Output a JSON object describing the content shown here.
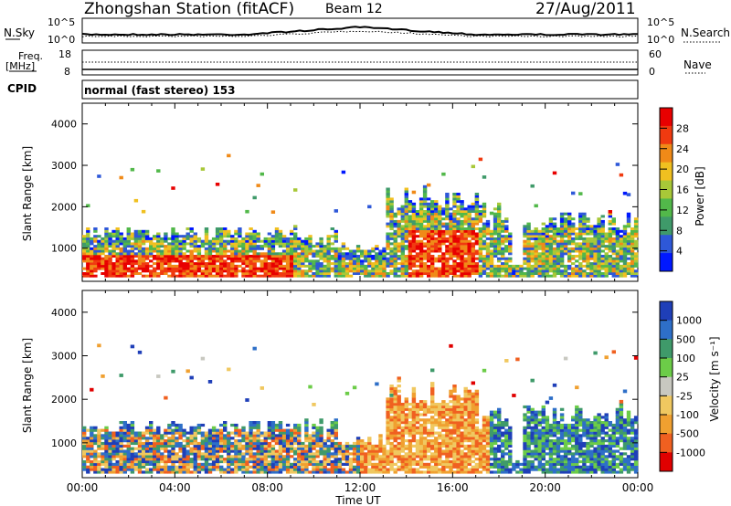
{
  "header": {
    "station": "Zhongshan Station (fitACF)",
    "beam": "Beam 12",
    "date": "27/Aug/2011"
  },
  "aux_panel": {
    "nsky_label": "N.Sky",
    "nsearch_label": "N.Search",
    "noise_top_tick": "10^5",
    "noise_bottom_tick": "10^0",
    "freq_label": "Freq.",
    "freq_unit": "[MHz]",
    "freq_ticks": [
      "18",
      "8"
    ],
    "nave_label": "Nave",
    "nave_ticks": [
      "60",
      "0"
    ],
    "cpid_label": "CPID",
    "cpid_value": "normal (fast stereo) 153"
  },
  "colors": {
    "power_scale": [
      "#0018ff",
      "#2e58d8",
      "#3f9a6a",
      "#52b84a",
      "#a8c838",
      "#f0c020",
      "#f08a18",
      "#f03a10",
      "#e80000"
    ],
    "velocity_scale": [
      "#1f3fb8",
      "#2e6fc8",
      "#3f9a6a",
      "#6ccc48",
      "#c8c8c0",
      "#f0c860",
      "#f0a030",
      "#f06020",
      "#e00000"
    ]
  },
  "chart_data": [
    {
      "type": "heatmap",
      "name": "power",
      "ylabel": "Slant Range [km]",
      "yticks": [
        "1000",
        "2000",
        "3000",
        "4000"
      ],
      "ylim": [
        200,
        4500
      ],
      "xticks": [
        "00:00",
        "04:00",
        "08:00",
        "12:00",
        "16:00",
        "20:00",
        "00:00"
      ],
      "colorbar_label": "Power [dB]",
      "colorbar_ticks": [
        "4",
        "8",
        "12",
        "16",
        "20",
        "24",
        "28"
      ]
    },
    {
      "type": "heatmap",
      "name": "velocity",
      "ylabel": "Slant Range [km]",
      "yticks": [
        "1000",
        "2000",
        "3000",
        "4000"
      ],
      "ylim": [
        200,
        4500
      ],
      "xticks": [
        "00:00",
        "04:00",
        "08:00",
        "12:00",
        "16:00",
        "20:00",
        "00:00"
      ],
      "xlabel": "Time UT",
      "colorbar_label": "Velocity [m s⁻¹]",
      "colorbar_ticks": [
        "1000",
        "500",
        "100",
        "25",
        "-25",
        "-100",
        "-500",
        "-1000"
      ]
    }
  ]
}
